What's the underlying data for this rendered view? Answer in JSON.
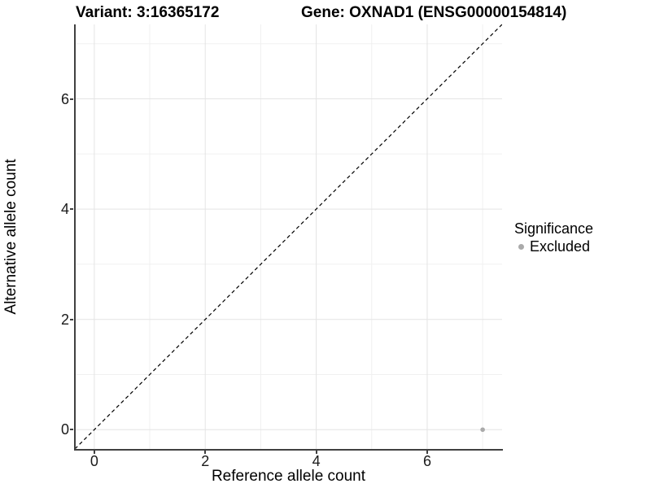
{
  "titles": {
    "variant": "Variant: 3:16365172",
    "gene": "Gene: OXNAD1 (ENSG00000154814)"
  },
  "legend": {
    "title": "Significance",
    "items": [
      {
        "label": "Excluded",
        "color": "#aaaaaa"
      }
    ]
  },
  "colors": {
    "background": "#ffffff",
    "axis_line": "#404040",
    "grid_major": "#e4e4e4",
    "grid_minor": "#f0f0f0",
    "tick_text": "#1a1a1a",
    "point_excluded": "#aaaaaa",
    "reference_line": "#000000"
  },
  "chart_data": {
    "type": "scatter",
    "title": "Variant: 3:16365172   Gene: OXNAD1 (ENSG00000154814)",
    "xlabel": "Reference allele count",
    "ylabel": "Alternative allele count",
    "xlim": [
      -0.35,
      7.35
    ],
    "ylim": [
      -0.35,
      7.35
    ],
    "x_major_breaks": [
      0,
      2,
      4,
      6
    ],
    "x_minor_breaks": [
      1,
      3,
      5,
      7
    ],
    "y_major_breaks": [
      0,
      2,
      4,
      6
    ],
    "y_minor_breaks": [
      1,
      3,
      5,
      7
    ],
    "grid": true,
    "legend_position": "right",
    "series": [
      {
        "name": "Excluded",
        "color": "#aaaaaa",
        "marker_radius": 2.8,
        "points": [
          {
            "x": 7,
            "y": 0
          }
        ]
      }
    ],
    "reference_line": {
      "kind": "identity y = x",
      "style": "dashed",
      "color": "#000000",
      "from": [
        -0.35,
        -0.35
      ],
      "to": [
        7.35,
        7.35
      ]
    }
  }
}
